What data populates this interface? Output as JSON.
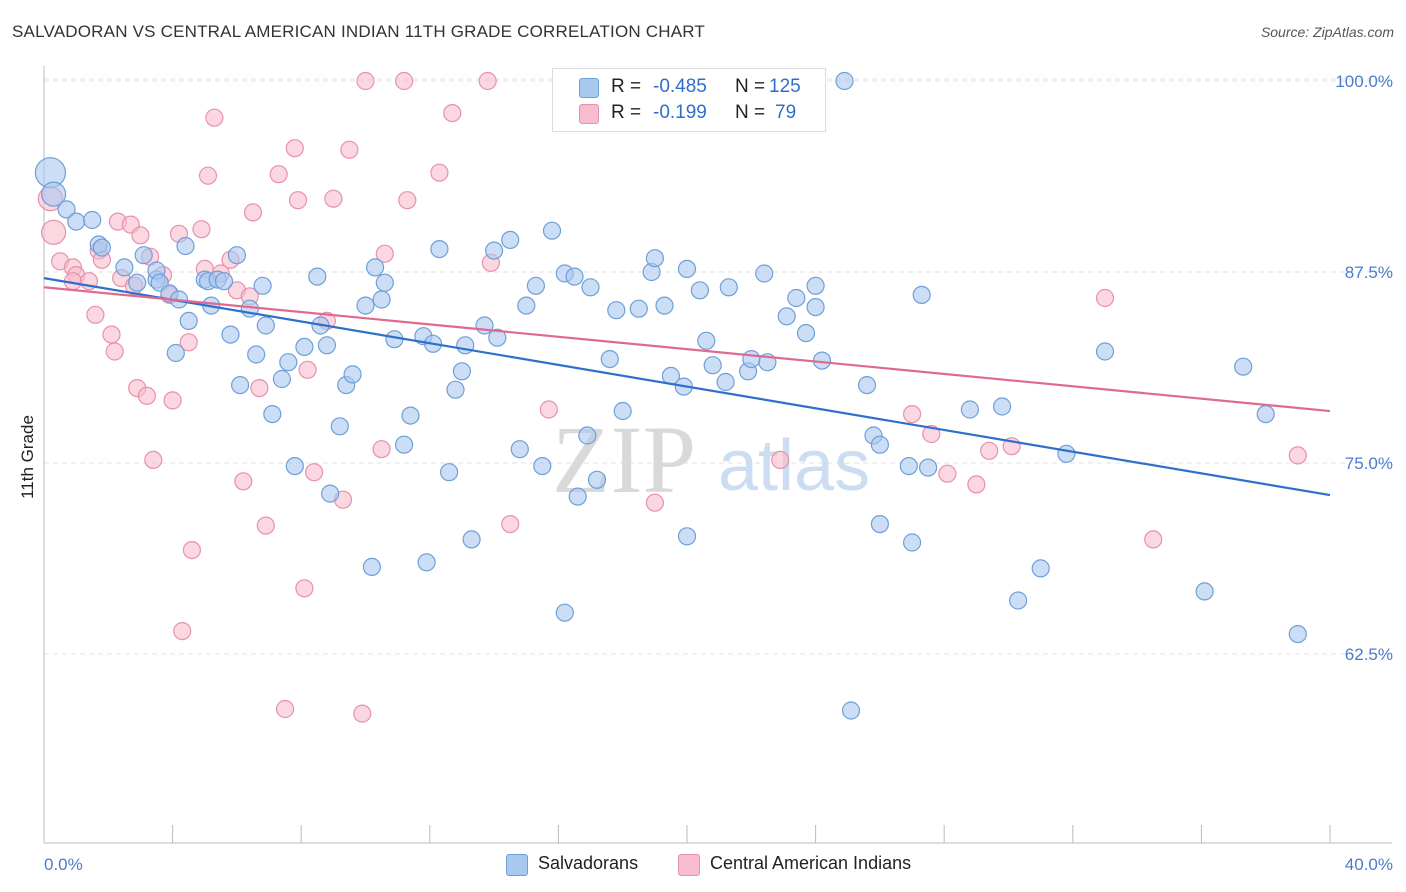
{
  "title": "SALVADORAN VS CENTRAL AMERICAN INDIAN 11TH GRADE CORRELATION CHART",
  "source": "Source: ZipAtlas.com",
  "colors": {
    "salvadoran_fill": "#a9c8f0",
    "salvadoran_stroke": "#6f9fd8",
    "salvadoran_line": "#2f6fcc",
    "cai_fill": "#f7bccd",
    "cai_stroke": "#e891ab",
    "cai_line": "#e0698f",
    "tick_label": "#4a7ccc",
    "grid": "#e2e2e2"
  },
  "legend": {
    "rows": [
      {
        "r_label": "R =",
        "r_value": "-0.485",
        "n_label": "N =",
        "n_value": "125"
      },
      {
        "r_label": "R =",
        "r_value": "-0.199",
        "n_label": "N =",
        "n_value": "79"
      }
    ]
  },
  "bottom_legend": [
    "Salvadorans",
    "Central American Indians"
  ],
  "watermark": {
    "zip": "ZIP",
    "atlas": "atlas"
  },
  "chart_data": {
    "type": "scatter",
    "title": "SALVADORAN VS CENTRAL AMERICAN INDIAN 11TH GRADE CORRELATION CHART",
    "xlabel": "",
    "ylabel": "11th Grade",
    "xlim": [
      0,
      40
    ],
    "ylim": [
      51,
      101
    ],
    "x_tick_labels": [
      "0.0%",
      "40.0%"
    ],
    "y_ticks": [
      62.5,
      75.0,
      87.5,
      100.0
    ],
    "y_tick_labels": [
      "62.5%",
      "75.0%",
      "87.5%",
      "100.0%"
    ],
    "grid": true,
    "legend_position": "top-center",
    "series": [
      {
        "name": "Salvadorans",
        "R": -0.485,
        "N": 125,
        "trend": {
          "x0": 0,
          "y0": 87.1,
          "x1": 40,
          "y1": 72.9
        },
        "points": [
          [
            0.2,
            94.0,
            3
          ],
          [
            0.3,
            92.6,
            2
          ],
          [
            0.7,
            91.6,
            1
          ],
          [
            1.0,
            90.8,
            1
          ],
          [
            1.5,
            90.9,
            1
          ],
          [
            1.7,
            89.3,
            1
          ],
          [
            1.8,
            89.1,
            1
          ],
          [
            2.5,
            87.8,
            1
          ],
          [
            2.9,
            86.8,
            1
          ],
          [
            3.1,
            88.6,
            1
          ],
          [
            3.5,
            87.0,
            1
          ],
          [
            3.5,
            87.6,
            1
          ],
          [
            3.6,
            86.8,
            1
          ],
          [
            3.9,
            86.1,
            1
          ],
          [
            4.2,
            85.7,
            1
          ],
          [
            4.1,
            82.2,
            1
          ],
          [
            4.4,
            89.2,
            1
          ],
          [
            4.5,
            84.3,
            1
          ],
          [
            5.0,
            87.0,
            1
          ],
          [
            5.1,
            86.9,
            1
          ],
          [
            5.2,
            85.3,
            1
          ],
          [
            5.4,
            87.0,
            1
          ],
          [
            5.6,
            86.9,
            1
          ],
          [
            5.8,
            83.4,
            1
          ],
          [
            6.0,
            88.6,
            1
          ],
          [
            6.1,
            80.1,
            1
          ],
          [
            6.4,
            85.1,
            1
          ],
          [
            6.6,
            82.1,
            1
          ],
          [
            6.8,
            86.6,
            1
          ],
          [
            6.9,
            84.0,
            1
          ],
          [
            7.1,
            78.2,
            1
          ],
          [
            7.4,
            80.5,
            1
          ],
          [
            7.6,
            81.6,
            1
          ],
          [
            7.8,
            74.8,
            1
          ],
          [
            8.1,
            82.6,
            1
          ],
          [
            8.5,
            87.2,
            1
          ],
          [
            8.6,
            84.0,
            1
          ],
          [
            8.8,
            82.7,
            1
          ],
          [
            8.9,
            73.0,
            1
          ],
          [
            9.2,
            77.4,
            1
          ],
          [
            9.4,
            80.1,
            1
          ],
          [
            9.6,
            80.8,
            1
          ],
          [
            10.0,
            85.3,
            1
          ],
          [
            10.2,
            68.2,
            1
          ],
          [
            10.3,
            87.8,
            1
          ],
          [
            10.5,
            85.7,
            1
          ],
          [
            10.6,
            86.8,
            1
          ],
          [
            10.9,
            83.1,
            1
          ],
          [
            11.2,
            76.2,
            1
          ],
          [
            11.4,
            78.1,
            1
          ],
          [
            11.8,
            83.3,
            1
          ],
          [
            11.9,
            68.5,
            1
          ],
          [
            12.1,
            82.8,
            1
          ],
          [
            12.3,
            89.0,
            1
          ],
          [
            12.6,
            74.4,
            1
          ],
          [
            12.8,
            79.8,
            1
          ],
          [
            13.0,
            81.0,
            1
          ],
          [
            13.1,
            82.7,
            1
          ],
          [
            13.3,
            70.0,
            1
          ],
          [
            13.7,
            84.0,
            1
          ],
          [
            14.0,
            88.9,
            1
          ],
          [
            14.1,
            83.2,
            1
          ],
          [
            14.5,
            89.6,
            1
          ],
          [
            14.8,
            75.9,
            1
          ],
          [
            15.0,
            85.3,
            1
          ],
          [
            15.3,
            86.6,
            1
          ],
          [
            15.5,
            74.8,
            1
          ],
          [
            15.8,
            90.2,
            1
          ],
          [
            16.2,
            87.4,
            1
          ],
          [
            16.5,
            87.2,
            1
          ],
          [
            16.2,
            65.2,
            1
          ],
          [
            16.6,
            72.8,
            1
          ],
          [
            16.9,
            76.8,
            1
          ],
          [
            17.0,
            86.5,
            1
          ],
          [
            17.2,
            73.9,
            1
          ],
          [
            17.6,
            81.8,
            1
          ],
          [
            17.8,
            85.0,
            1
          ],
          [
            18.0,
            78.4,
            1
          ],
          [
            18.5,
            85.1,
            1
          ],
          [
            18.9,
            87.5,
            1
          ],
          [
            19.0,
            88.4,
            1
          ],
          [
            19.3,
            85.3,
            1
          ],
          [
            19.5,
            80.7,
            1
          ],
          [
            19.9,
            80.0,
            1
          ],
          [
            20.0,
            87.7,
            1
          ],
          [
            20.4,
            86.3,
            1
          ],
          [
            20.0,
            70.2,
            1
          ],
          [
            20.6,
            83.0,
            1
          ],
          [
            20.8,
            81.4,
            1
          ],
          [
            21.2,
            80.3,
            1
          ],
          [
            21.3,
            86.5,
            1
          ],
          [
            21.9,
            81.0,
            1
          ],
          [
            22.0,
            81.8,
            1
          ],
          [
            22.4,
            87.4,
            1
          ],
          [
            22.5,
            81.6,
            1
          ],
          [
            23.1,
            84.6,
            1
          ],
          [
            23.4,
            85.8,
            1
          ],
          [
            23.7,
            83.5,
            1
          ],
          [
            24.0,
            86.6,
            1
          ],
          [
            24.0,
            85.2,
            1
          ],
          [
            24.2,
            81.7,
            1
          ],
          [
            24.9,
            100.0,
            1
          ],
          [
            25.1,
            58.8,
            1
          ],
          [
            25.6,
            80.1,
            1
          ],
          [
            25.8,
            76.8,
            1
          ],
          [
            26.0,
            76.2,
            1
          ],
          [
            26.0,
            71.0,
            1
          ],
          [
            26.9,
            74.8,
            1
          ],
          [
            27.0,
            69.8,
            1
          ],
          [
            27.3,
            86.0,
            1
          ],
          [
            27.5,
            74.7,
            1
          ],
          [
            28.8,
            78.5,
            1
          ],
          [
            29.8,
            78.7,
            1
          ],
          [
            30.3,
            66.0,
            1
          ],
          [
            31.0,
            68.1,
            1
          ],
          [
            31.8,
            75.6,
            1
          ],
          [
            33.0,
            82.3,
            1
          ],
          [
            36.1,
            66.6,
            1
          ],
          [
            37.3,
            81.3,
            1
          ],
          [
            38.0,
            78.2,
            1
          ],
          [
            39.0,
            63.8,
            1
          ]
        ]
      },
      {
        "name": "Central American Indians",
        "R": -0.199,
        "N": 79,
        "trend": {
          "x0": 0,
          "y0": 86.5,
          "x1": 40,
          "y1": 78.4
        },
        "points": [
          [
            0.2,
            92.3,
            2
          ],
          [
            0.3,
            90.1,
            2
          ],
          [
            0.5,
            88.2,
            1
          ],
          [
            0.9,
            87.8,
            1
          ],
          [
            1.0,
            87.3,
            1
          ],
          [
            0.9,
            86.9,
            1
          ],
          [
            1.4,
            86.9,
            1
          ],
          [
            1.6,
            84.7,
            1
          ],
          [
            1.7,
            88.9,
            1
          ],
          [
            1.8,
            88.3,
            1
          ],
          [
            2.1,
            83.4,
            1
          ],
          [
            2.2,
            82.3,
            1
          ],
          [
            2.3,
            90.8,
            1
          ],
          [
            2.4,
            87.1,
            1
          ],
          [
            2.7,
            90.6,
            1
          ],
          [
            2.8,
            86.6,
            1
          ],
          [
            2.9,
            79.9,
            1
          ],
          [
            3.0,
            89.9,
            1
          ],
          [
            3.2,
            79.4,
            1
          ],
          [
            3.3,
            88.5,
            1
          ],
          [
            3.4,
            75.2,
            1
          ],
          [
            3.7,
            87.3,
            1
          ],
          [
            3.9,
            86.0,
            1
          ],
          [
            4.0,
            79.1,
            1
          ],
          [
            4.2,
            90.0,
            1
          ],
          [
            4.3,
            64.0,
            1
          ],
          [
            4.5,
            82.9,
            1
          ],
          [
            4.6,
            69.3,
            1
          ],
          [
            4.9,
            90.3,
            1
          ],
          [
            5.0,
            87.7,
            1
          ],
          [
            5.1,
            93.8,
            1
          ],
          [
            5.3,
            97.6,
            1
          ],
          [
            5.5,
            87.4,
            1
          ],
          [
            5.8,
            88.3,
            1
          ],
          [
            6.0,
            86.3,
            1
          ],
          [
            6.2,
            73.8,
            1
          ],
          [
            6.4,
            85.9,
            1
          ],
          [
            6.5,
            91.4,
            1
          ],
          [
            6.7,
            79.9,
            1
          ],
          [
            6.9,
            70.9,
            1
          ],
          [
            7.3,
            93.9,
            1
          ],
          [
            7.5,
            58.9,
            1
          ],
          [
            7.8,
            95.6,
            1
          ],
          [
            7.9,
            92.2,
            1
          ],
          [
            8.2,
            81.1,
            1
          ],
          [
            8.1,
            66.8,
            1
          ],
          [
            8.4,
            74.4,
            1
          ],
          [
            8.8,
            84.3,
            1
          ],
          [
            9.0,
            92.3,
            1
          ],
          [
            9.3,
            72.6,
            1
          ],
          [
            9.5,
            95.5,
            1
          ],
          [
            9.9,
            58.6,
            1
          ],
          [
            10.0,
            100.0,
            1
          ],
          [
            10.5,
            75.9,
            1
          ],
          [
            10.6,
            88.7,
            1
          ],
          [
            11.2,
            100.0,
            1
          ],
          [
            11.3,
            92.2,
            1
          ],
          [
            12.3,
            94.0,
            1
          ],
          [
            12.7,
            97.9,
            1
          ],
          [
            13.8,
            100.0,
            1
          ],
          [
            13.9,
            88.1,
            1
          ],
          [
            14.5,
            71.0,
            1
          ],
          [
            15.7,
            78.5,
            1
          ],
          [
            16.3,
            97.3,
            1
          ],
          [
            19.0,
            72.4,
            1
          ],
          [
            22.3,
            100.0,
            1
          ],
          [
            22.9,
            75.2,
            1
          ],
          [
            27.0,
            78.2,
            1
          ],
          [
            27.6,
            76.9,
            1
          ],
          [
            28.1,
            74.3,
            1
          ],
          [
            29.0,
            73.6,
            1
          ],
          [
            29.4,
            75.8,
            1
          ],
          [
            30.1,
            76.1,
            1
          ],
          [
            33.0,
            85.8,
            1
          ],
          [
            34.5,
            70.0,
            1
          ],
          [
            39.0,
            75.5,
            1
          ]
        ]
      }
    ]
  }
}
